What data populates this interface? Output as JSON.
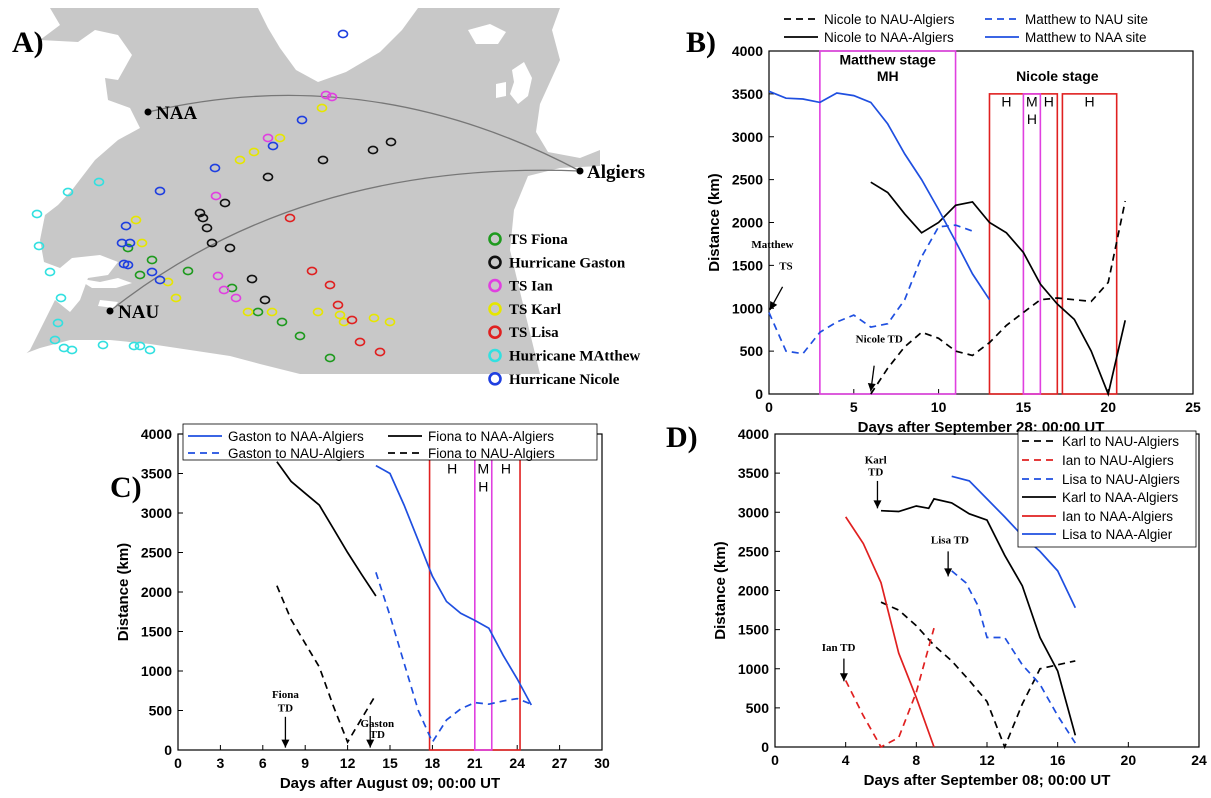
{
  "panel_tags": [
    "A)",
    "B)",
    "C)",
    "D)"
  ],
  "map": {
    "cities": [
      {
        "key": "NAA",
        "label": "NAA"
      },
      {
        "key": "NAU",
        "label": "NAU"
      },
      {
        "key": "ALG",
        "label": "Algiers"
      }
    ],
    "legend": [
      {
        "label": "TS Fiona",
        "color": "#1e9a1e"
      },
      {
        "label": "Hurricane Gaston",
        "color": "#111111"
      },
      {
        "label": "TS Ian",
        "color": "#e040e0"
      },
      {
        "label": "TS Karl",
        "color": "#e6e600"
      },
      {
        "label": "TS Lisa",
        "color": "#e02020"
      },
      {
        "label": "Hurricane MAtthew",
        "color": "#33e0e0"
      },
      {
        "label": "Hurricane Nicole",
        "color": "#1f3fe0"
      }
    ]
  },
  "chart_data": [
    {
      "panel": "B)",
      "type": "line",
      "xlabel": "Days after September 28; 00:00 UT",
      "ylabel": "Distance (km)",
      "xlim": [
        0,
        25
      ],
      "ylim": [
        0,
        4000
      ],
      "xticks": [
        "0",
        "5",
        "10",
        "15",
        "20",
        "25"
      ],
      "yticks": [
        "0",
        "500",
        "1000",
        "1500",
        "2000",
        "2500",
        "3000",
        "3500",
        "4000"
      ],
      "legend_position": "top",
      "series": [
        {
          "name": "Nicole to NAU-Algiers",
          "color": "#000000",
          "dash": true,
          "x": [
            6,
            7,
            8,
            9,
            10,
            11,
            12,
            13,
            14,
            15,
            16,
            17,
            18,
            19,
            20,
            21
          ],
          "y": [
            0,
            300,
            550,
            720,
            650,
            500,
            450,
            600,
            800,
            950,
            1100,
            1120,
            1100,
            1080,
            1300,
            2250
          ]
        },
        {
          "name": "Nicole to NAA-Algiers",
          "color": "#000000",
          "dash": false,
          "x": [
            6,
            7,
            8,
            9,
            10,
            11,
            12,
            13,
            14,
            15,
            16,
            17,
            18,
            19,
            20,
            21
          ],
          "y": [
            2470,
            2350,
            2100,
            1880,
            2000,
            2200,
            2240,
            2000,
            1880,
            1650,
            1280,
            1050,
            870,
            500,
            0,
            860
          ]
        },
        {
          "name": "Matthew to NAU site",
          "color": "#1f4fe0",
          "dash": true,
          "x": [
            0,
            1,
            2,
            3,
            4,
            5,
            6,
            7,
            8,
            9,
            10,
            11,
            12
          ],
          "y": [
            950,
            500,
            470,
            720,
            840,
            920,
            780,
            820,
            1100,
            1600,
            1950,
            1970,
            1900
          ]
        },
        {
          "name": "Matthew to NAA site",
          "color": "#1f4fe0",
          "dash": false,
          "x": [
            0,
            1,
            2,
            3,
            4,
            5,
            6,
            7,
            8,
            9,
            10,
            11,
            12,
            13
          ],
          "y": [
            3530,
            3450,
            3440,
            3400,
            3510,
            3480,
            3400,
            3150,
            2800,
            2500,
            2150,
            1780,
            1400,
            1100
          ]
        }
      ],
      "boxes": [
        {
          "x0": 3,
          "x1": 11,
          "y0": 0,
          "y1": 4000,
          "color": "#e040e0"
        },
        {
          "x0": 13,
          "x1": 17,
          "y0": 0,
          "y1": 3500,
          "color": "#e02020"
        },
        {
          "x0": 15,
          "x1": 16,
          "y0": 0,
          "y1": 3500,
          "color": "#e040e0"
        },
        {
          "x0": 17.3,
          "x1": 20.5,
          "y0": 0,
          "y1": 3500,
          "color": "#e02020"
        }
      ],
      "box_labels": [
        {
          "text": "H",
          "x": 14,
          "y": 3350
        },
        {
          "text": "M",
          "x": 15.5,
          "y": 3350
        },
        {
          "text": "H",
          "x": 15.5,
          "y": 3150
        },
        {
          "text": "H",
          "x": 16.5,
          "y": 3350
        },
        {
          "text": "H",
          "x": 18.9,
          "y": 3350
        }
      ],
      "stage_labels": [
        {
          "text": "Matthew stage",
          "x": 7,
          "y": 3840
        },
        {
          "text": "MH",
          "x": 7,
          "y": 3650
        },
        {
          "text": "Nicole stage",
          "x": 17,
          "y": 3650
        }
      ],
      "annotations": [
        {
          "text": "Matthew",
          "x": 0.2,
          "y": 1700
        },
        {
          "text": "TS",
          "x": 1,
          "y": 1450
        },
        {
          "text": "Nicole TD",
          "x": 6.5,
          "y": 600
        }
      ],
      "arrows": [
        {
          "x0": 0.8,
          "y0": 1250,
          "x1": 0.05,
          "y1": 980
        },
        {
          "x0": 6.2,
          "y0": 330,
          "x1": 6.0,
          "y1": 30
        }
      ]
    },
    {
      "panel": "C)",
      "type": "line",
      "xlabel": "Days after August 09; 00:00 UT",
      "ylabel": "Distance (km)",
      "xlim": [
        0,
        30
      ],
      "ylim": [
        0,
        4000
      ],
      "xticks": [
        "0",
        "3",
        "6",
        "9",
        "12",
        "15",
        "18",
        "21",
        "24",
        "27",
        "30"
      ],
      "yticks": [
        "0",
        "500",
        "1000",
        "1500",
        "2000",
        "2500",
        "3000",
        "3500",
        "4000"
      ],
      "legend_position": "top",
      "series": [
        {
          "name": "Gaston to NAA-Algiers",
          "color": "#1f4fe0",
          "dash": false,
          "x": [
            14,
            15,
            16,
            17,
            18,
            19,
            20,
            21,
            22,
            23,
            24,
            25
          ],
          "y": [
            3600,
            3500,
            3100,
            2650,
            2200,
            1880,
            1730,
            1640,
            1540,
            1200,
            900,
            570
          ]
        },
        {
          "name": "Gaston to NAU-Algiers",
          "color": "#1f4fe0",
          "dash": true,
          "x": [
            14,
            15,
            16,
            17,
            18,
            19,
            20,
            21,
            22,
            23,
            24,
            25
          ],
          "y": [
            2250,
            1700,
            1100,
            500,
            100,
            380,
            520,
            600,
            580,
            620,
            650,
            580
          ]
        },
        {
          "name": "Fiona to NAA-Algiers",
          "color": "#000000",
          "dash": false,
          "x": [
            7,
            8,
            9,
            10,
            11,
            12,
            13,
            14
          ],
          "y": [
            3650,
            3400,
            3250,
            3100,
            2800,
            2500,
            2220,
            1950
          ]
        },
        {
          "name": "Fiona to NAU-Algiers",
          "color": "#000000",
          "dash": true,
          "x": [
            7,
            8,
            9,
            10,
            11,
            12,
            13,
            14
          ],
          "y": [
            2080,
            1650,
            1350,
            1050,
            550,
            100,
            400,
            700
          ]
        }
      ],
      "boxes": [
        {
          "x0": 17.8,
          "x1": 24.2,
          "y0": 0,
          "y1": 3800,
          "color": "#e02020"
        },
        {
          "x0": 21,
          "x1": 22.2,
          "y0": 0,
          "y1": 3800,
          "color": "#e040e0"
        }
      ],
      "box_labels": [
        {
          "text": "H",
          "x": 19.4,
          "y": 3500
        },
        {
          "text": "M",
          "x": 21.6,
          "y": 3500
        },
        {
          "text": "H",
          "x": 21.6,
          "y": 3270
        },
        {
          "text": "H",
          "x": 23.2,
          "y": 3500
        }
      ],
      "stage_labels": [],
      "annotations": [
        {
          "text": "Fiona",
          "x": 7.6,
          "y": 660
        },
        {
          "text": "TD",
          "x": 7.6,
          "y": 490
        },
        {
          "text": "Gaston",
          "x": 14.1,
          "y": 290
        },
        {
          "text": "TD",
          "x": 14.1,
          "y": 150
        }
      ],
      "arrows": [
        {
          "x0": 7.6,
          "y0": 420,
          "x1": 7.6,
          "y1": 30
        },
        {
          "x0": 13.6,
          "y0": 430,
          "x1": 13.6,
          "y1": 30
        }
      ]
    },
    {
      "panel": "D)",
      "type": "line",
      "xlabel": "Days after September 08; 00:00 UT",
      "ylabel": "Distance (km)",
      "xlim": [
        0,
        24
      ],
      "ylim": [
        0,
        4000
      ],
      "xticks": [
        "0",
        "4",
        "8",
        "12",
        "16",
        "20",
        "24"
      ],
      "yticks": [
        "0",
        "500",
        "1000",
        "1500",
        "2000",
        "2500",
        "3000",
        "3500",
        "4000"
      ],
      "legend_position": "top-right",
      "series": [
        {
          "name": "Karl to NAU-Algiers",
          "color": "#000000",
          "dash": true,
          "x": [
            6,
            7,
            8,
            9,
            10,
            11,
            12,
            13,
            14,
            15,
            16,
            17
          ],
          "y": [
            1850,
            1750,
            1550,
            1300,
            1100,
            850,
            580,
            0,
            550,
            1000,
            1050,
            1100
          ]
        },
        {
          "name": "Ian to NAU-Algiers",
          "color": "#e02020",
          "dash": true,
          "x": [
            4,
            5,
            6,
            7,
            8,
            9
          ],
          "y": [
            850,
            400,
            0,
            120,
            700,
            1520
          ]
        },
        {
          "name": "Lisa to NAU-Algiers",
          "color": "#1f4fe0",
          "dash": true,
          "x": [
            10,
            10.8,
            11.5,
            12,
            13,
            14,
            15,
            16,
            17
          ],
          "y": [
            2250,
            2100,
            1800,
            1400,
            1400,
            1050,
            800,
            400,
            50
          ]
        },
        {
          "name": "Karl to NAA-Algiers",
          "color": "#000000",
          "dash": false,
          "x": [
            6,
            7,
            8,
            8.7,
            9,
            10,
            11,
            12,
            13,
            14,
            15,
            16,
            17
          ],
          "y": [
            3020,
            3010,
            3080,
            3050,
            3170,
            3120,
            2980,
            2900,
            2450,
            2060,
            1400,
            970,
            150
          ]
        },
        {
          "name": "Ian to NAA-Algiers",
          "color": "#e02020",
          "dash": false,
          "x": [
            4,
            5,
            6,
            7,
            8,
            9
          ],
          "y": [
            2940,
            2600,
            2100,
            1200,
            630,
            0
          ]
        },
        {
          "name": "Lisa to NAA-Algier",
          "color": "#1f4fe0",
          "dash": false,
          "x": [
            10,
            11,
            12,
            13,
            14,
            15,
            16,
            17
          ],
          "y": [
            3460,
            3400,
            3170,
            2940,
            2700,
            2500,
            2250,
            1780
          ]
        }
      ],
      "boxes": [],
      "box_labels": [],
      "stage_labels": [],
      "annotations": [
        {
          "text": "Karl",
          "x": 5.7,
          "y": 3620
        },
        {
          "text": "TD",
          "x": 5.7,
          "y": 3470
        },
        {
          "text": "Lisa TD",
          "x": 9.9,
          "y": 2600
        },
        {
          "text": "Ian TD",
          "x": 3.6,
          "y": 1230
        }
      ],
      "arrows": [
        {
          "x0": 5.8,
          "y0": 3400,
          "x1": 5.8,
          "y1": 3050
        },
        {
          "x0": 9.8,
          "y0": 2500,
          "x1": 9.8,
          "y1": 2180
        },
        {
          "x0": 3.9,
          "y0": 1130,
          "x1": 3.9,
          "y1": 840
        }
      ]
    }
  ]
}
